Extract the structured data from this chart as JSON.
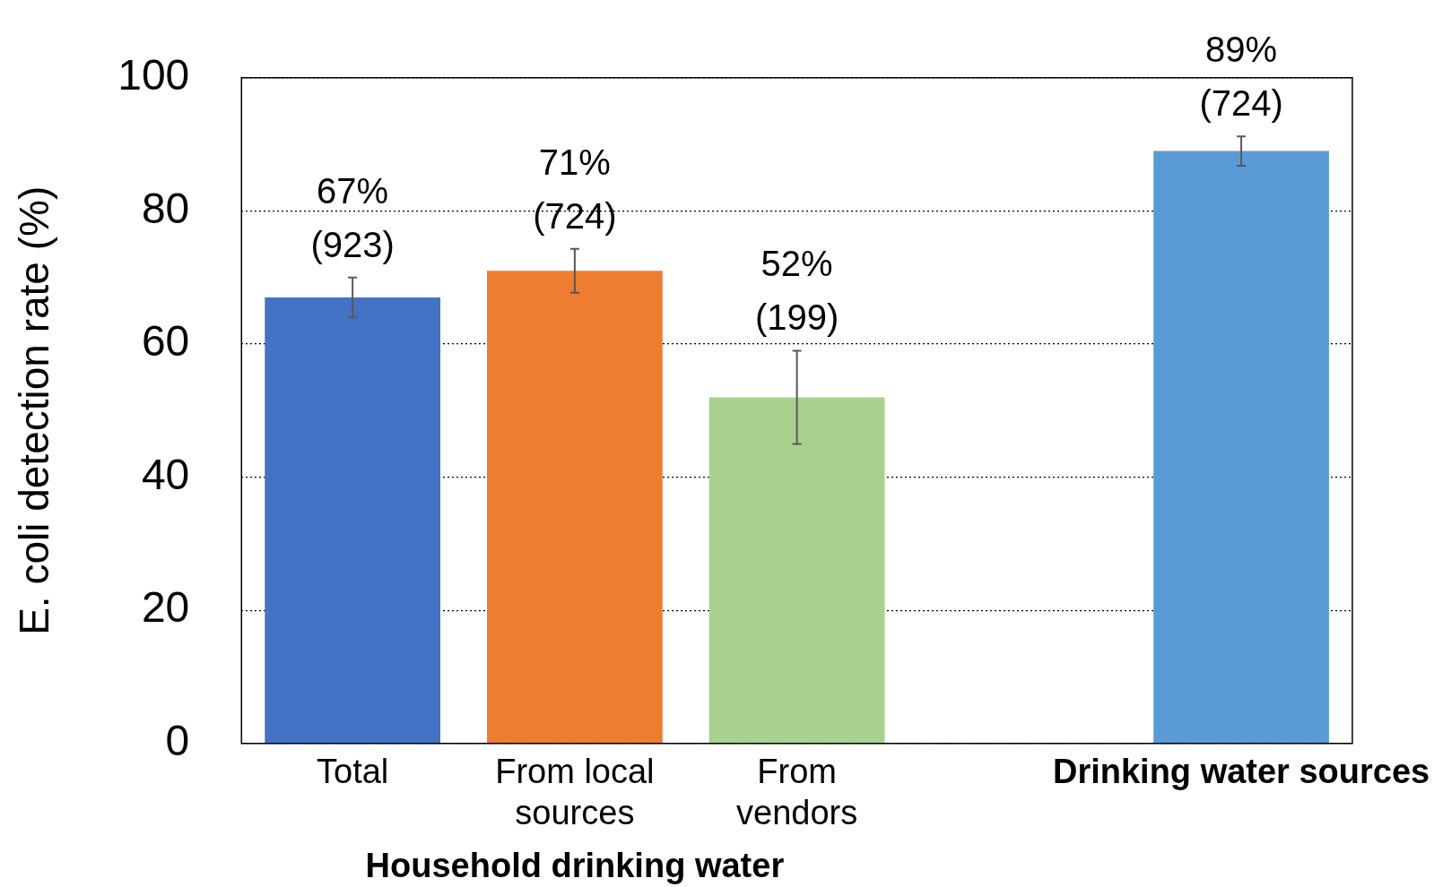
{
  "chart_data": {
    "type": "bar",
    "ylabel": "E. coli detection rate (%)",
    "xlabel": "Household drinking water",
    "categories": [
      "Total",
      "From local\nsources",
      "From\nvendors",
      null,
      "Drinking water sources"
    ],
    "values": [
      67,
      71,
      52,
      null,
      89
    ],
    "colors": [
      "#4472c4",
      "#ed7d31",
      "#a9d18e",
      "#ffffff",
      "#5b9bd5"
    ],
    "errors": [
      3,
      3.3,
      7,
      null,
      2.2
    ],
    "value_labels": [
      "67%\n(923)",
      "71%\n(724)",
      "52%\n(199)",
      null,
      "89%\n(724)"
    ],
    "ylim": [
      0,
      100
    ],
    "yticks": [
      0,
      20,
      40,
      60,
      80,
      100
    ],
    "grid": "y",
    "legend": false
  }
}
